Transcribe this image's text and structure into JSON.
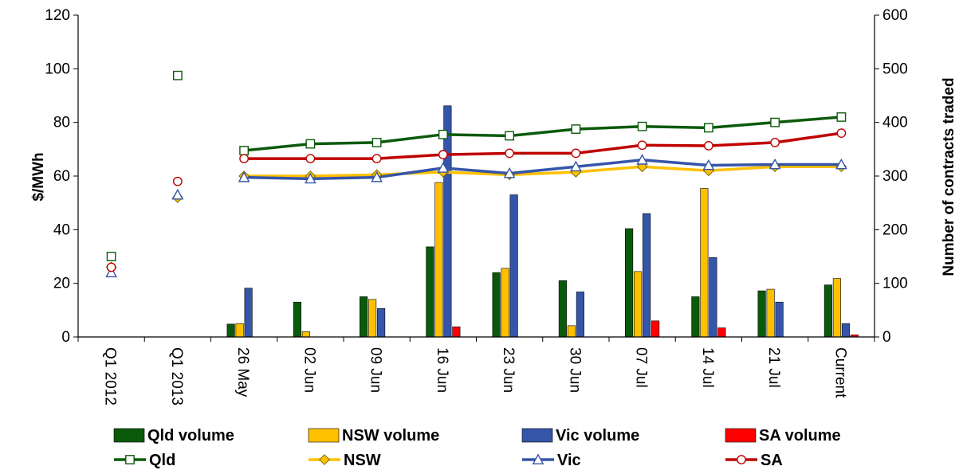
{
  "chart_data": {
    "type": "bar",
    "categories": [
      "Q1 2012",
      "Q1 2013",
      "26 May",
      "02 Jun",
      "09 Jun",
      "16 Jun",
      "23 Jun",
      "30 Jun",
      "07 Jul",
      "14 Jul",
      "21 Jul",
      "Current"
    ],
    "ylabel": "$/MWh",
    "y2label": "Number of contracts traded",
    "ylim": [
      0,
      120
    ],
    "y2lim": [
      0,
      600
    ],
    "yticks": [
      "0",
      "20",
      "40",
      "60",
      "80",
      "100",
      "120"
    ],
    "y2ticks": [
      "0",
      "100",
      "200",
      "300",
      "400",
      "500",
      "600"
    ],
    "bar_series": [
      {
        "name": "Qld volume",
        "color": "#0b5a0b",
        "axis": "right",
        "values": [
          0,
          0,
          24,
          65,
          75,
          168,
          120,
          105,
          202,
          75,
          86,
          97
        ]
      },
      {
        "name": "NSW volume",
        "color": "#ffc000",
        "axis": "right",
        "values": [
          0,
          0,
          25,
          10,
          70,
          288,
          128,
          21,
          122,
          277,
          89,
          109
        ]
      },
      {
        "name": "Vic volume",
        "color": "#3555a8",
        "axis": "right",
        "values": [
          0,
          0,
          91,
          0,
          53,
          431,
          265,
          84,
          230,
          148,
          65,
          25
        ]
      },
      {
        "name": "SA volume",
        "color": "#ff0000",
        "axis": "right",
        "values": [
          0,
          0,
          0,
          0,
          0,
          19,
          0,
          0,
          30,
          17,
          0,
          4
        ]
      }
    ],
    "line_series": [
      {
        "name": "Qld",
        "color": "#0b5a0b",
        "marker": "square",
        "axis": "left",
        "values": [
          30,
          97.5,
          69.5,
          72,
          72.5,
          75.5,
          75,
          77.5,
          78.5,
          78,
          80,
          82
        ]
      },
      {
        "name": "NSW",
        "color": "#ffc000",
        "marker": "diamond",
        "axis": "left",
        "values": [
          26,
          52,
          60,
          60,
          60.5,
          61.5,
          60.5,
          61.5,
          63.5,
          62,
          63.5,
          63.5
        ]
      },
      {
        "name": "Vic",
        "color": "#3555a8",
        "marker": "triangle",
        "axis": "left",
        "values": [
          24,
          53,
          59.5,
          59,
          59.5,
          63,
          61,
          63.5,
          66,
          64,
          64.3,
          64.3
        ]
      },
      {
        "name": "SA",
        "color": "#c00000",
        "marker": "circle",
        "axis": "left",
        "values": [
          26,
          58,
          66.5,
          66.5,
          66.5,
          68,
          68.5,
          68.5,
          71.5,
          71.3,
          72.5,
          76
        ]
      }
    ],
    "line_connect_from_index": 2,
    "grid": false,
    "legend": "bottom"
  }
}
